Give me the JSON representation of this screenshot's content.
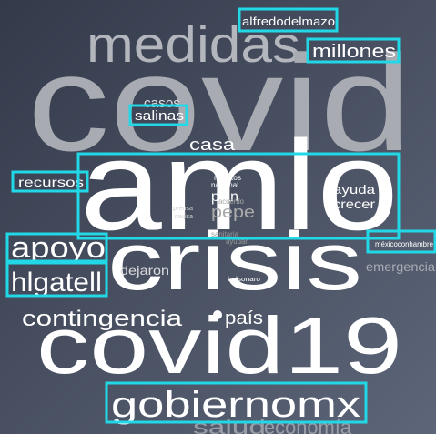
{
  "words": [
    "medidas",
    "covid",
    "alfredodelmazo",
    "millones",
    "casos",
    "salinas",
    "casa",
    "amlo",
    "recursos",
    "muertos",
    "nacional",
    "plan",
    "acuerdo",
    "pepe",
    "prensa",
    "mujica",
    "ayuda",
    "crecer",
    "apoyo",
    "crisis",
    "sanitaria",
    "ayudar",
    "méxicoconhambre",
    "emergencia",
    "hlgatell",
    "dejaron",
    "bolsonaro",
    "contingencia",
    "país",
    "covid19",
    "gobiernomx",
    "salud",
    "economía"
  ]
}
